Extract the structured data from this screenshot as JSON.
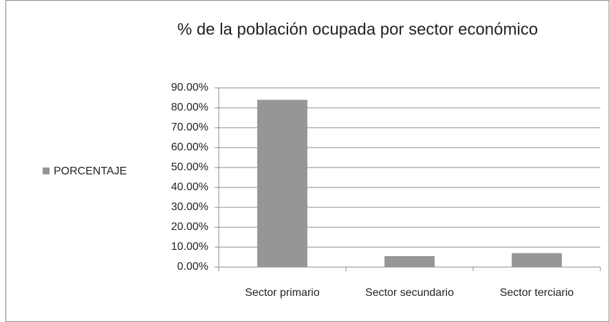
{
  "chart_data": {
    "type": "bar",
    "title": "% de la población ocupada por sector económico",
    "categories": [
      "Sector primario",
      "Sector secundario",
      "Sector terciario"
    ],
    "series": [
      {
        "name": "PORCENTAJE",
        "color": "#969696",
        "values": [
          84,
          5.5,
          7
        ]
      }
    ],
    "ylim": [
      0,
      90
    ],
    "yticks": [
      {
        "value": 0,
        "label": "0.00%"
      },
      {
        "value": 10,
        "label": "10.00%"
      },
      {
        "value": 20,
        "label": "20.00%"
      },
      {
        "value": 30,
        "label": "30.00%"
      },
      {
        "value": 40,
        "label": "40.00%"
      },
      {
        "value": 50,
        "label": "50.00%"
      },
      {
        "value": 60,
        "label": "60.00%"
      },
      {
        "value": 70,
        "label": "70.00%"
      },
      {
        "value": 80,
        "label": "80.00%"
      },
      {
        "value": 90,
        "label": "90.00%"
      }
    ],
    "grid": true,
    "legend": "left"
  }
}
